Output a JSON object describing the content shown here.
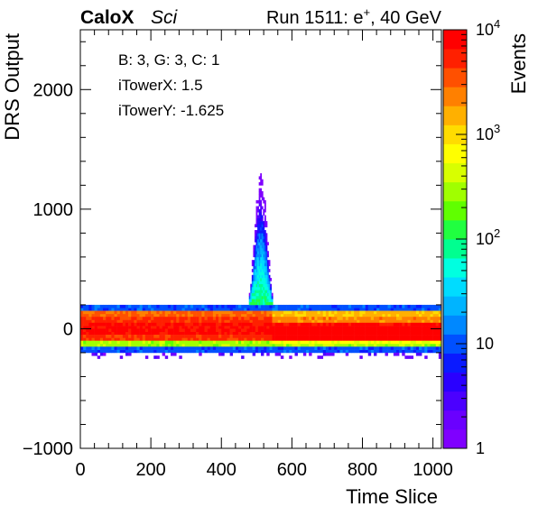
{
  "chart_data": {
    "type": "heatmap",
    "header": {
      "experiment": "CaloX",
      "tag": "Sci",
      "run_prefix": "Run 1511: e",
      "run_superscript": "+",
      "run_suffix": ", 40 GeV"
    },
    "xlabel": "Time Slice",
    "ylabel": "DRS Output",
    "zlabel": "Events",
    "xlim": [
      0,
      1024
    ],
    "ylim": [
      -1000,
      2500
    ],
    "zlim": [
      1,
      10000
    ],
    "z_log": true,
    "x_ticks": [
      0,
      200,
      400,
      600,
      800,
      1000
    ],
    "x_tick_labels": [
      "0",
      "200",
      "400",
      "600",
      "800",
      "1000"
    ],
    "y_ticks": [
      -1000,
      0,
      1000,
      2000
    ],
    "y_tick_labels": [
      "−1000",
      "0",
      "1000",
      "2000"
    ],
    "z_ticks": [
      {
        "value": 1,
        "base": "1",
        "exp": ""
      },
      {
        "value": 10,
        "base": "10",
        "exp": ""
      },
      {
        "value": 100,
        "base": "10",
        "exp": "2"
      },
      {
        "value": 1000,
        "base": "10",
        "exp": "3"
      },
      {
        "value": 10000,
        "base": "10",
        "exp": "4"
      }
    ],
    "info_box": [
      "B: 3, G: 3, C: 1",
      "iTowerX: 1.5",
      "iTowerY: -1.625"
    ],
    "palette": [
      "#7f00ff",
      "#6a00ff",
      "#4b00ff",
      "#2a00ff",
      "#0a1aff",
      "#0050ff",
      "#0088ff",
      "#00b4ff",
      "#00dcff",
      "#00ffe0",
      "#00ff90",
      "#20ff40",
      "#60ff00",
      "#a0ff00",
      "#d8ff00",
      "#ffff00",
      "#ffdc00",
      "#ffb000",
      "#ff8000",
      "#ff5000",
      "#ff2000",
      "#ff0000"
    ],
    "y_bin_width": 25,
    "baseline_bands": [
      {
        "y_from": 150,
        "y_to": 200,
        "value": 10
      },
      {
        "y_from": 100,
        "y_to": 150,
        "value": 3000
      },
      {
        "y_from": 50,
        "y_to": 100,
        "value": 5000
      },
      {
        "y_from": 0,
        "y_to": 50,
        "value": 7000
      },
      {
        "y_from": -50,
        "y_to": 0,
        "value": 8000
      },
      {
        "y_from": -100,
        "y_to": -50,
        "value": 5000
      },
      {
        "y_from": -150,
        "y_to": -100,
        "value": 300
      },
      {
        "y_from": -200,
        "y_to": -150,
        "value": 10
      },
      {
        "y_from": -250,
        "y_to": -200,
        "value": 2
      }
    ],
    "pulse": {
      "x_start": 470,
      "x_end": 590,
      "x_peak": 510,
      "peak_y": 1300,
      "core_value": 100
    }
  }
}
